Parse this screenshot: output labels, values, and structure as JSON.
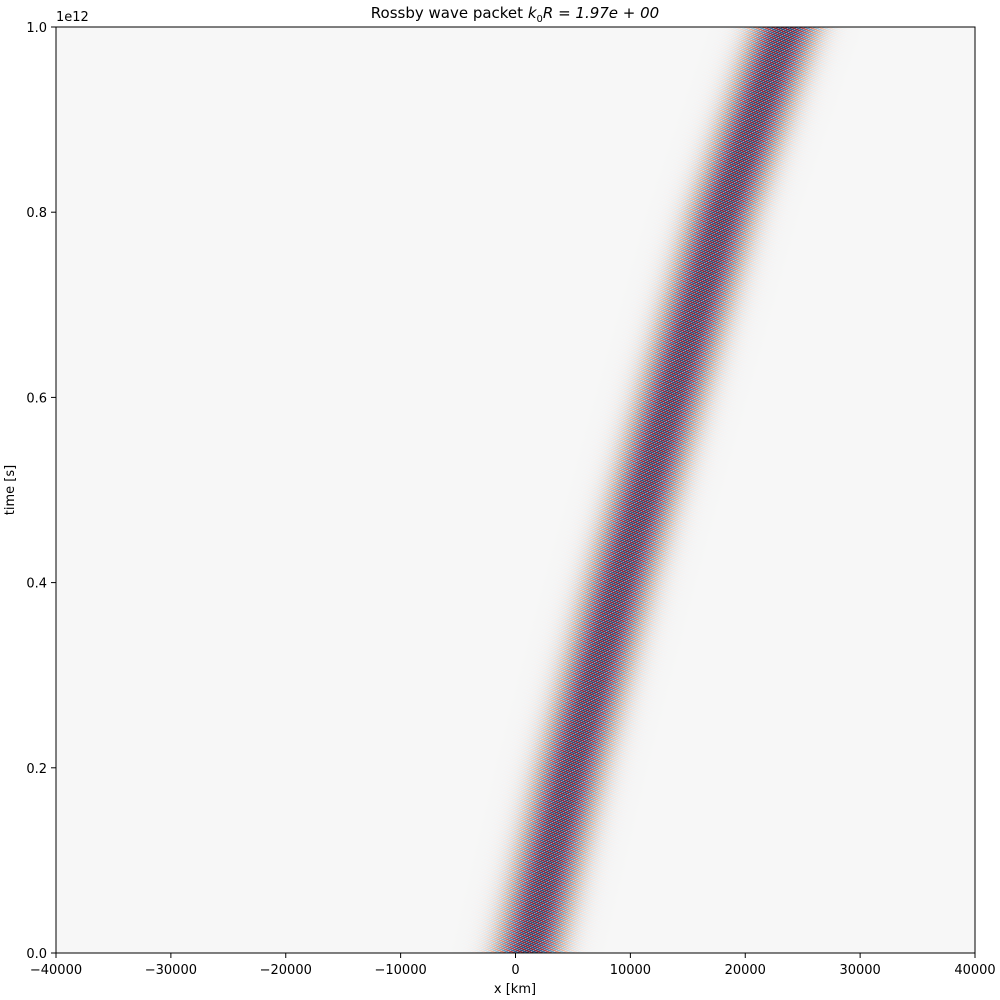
{
  "chart_data": {
    "type": "heatmap",
    "title_prefix": "Rossby wave packet ",
    "title_math": "k",
    "title_math_sub": "0",
    "title_math_rest": "R = 1.97e + 00",
    "xlabel": "x [km]",
    "ylabel": "time [s]",
    "y_offset_label": "1e12",
    "xlim": [
      -40000,
      40000
    ],
    "ylim": [
      0,
      1.0
    ],
    "y_scale_factor": 1000000000000.0,
    "xticks": [
      -40000,
      -30000,
      -20000,
      -10000,
      0,
      10000,
      20000,
      30000,
      40000
    ],
    "xtick_labels": [
      "−40000",
      "−30000",
      "−20000",
      "−10000",
      "0",
      "10000",
      "20000",
      "30000",
      "40000"
    ],
    "yticks": [
      0.0,
      0.2,
      0.4,
      0.6,
      0.8,
      1.0
    ],
    "ytick_labels": [
      "0.0",
      "0.2",
      "0.4",
      "0.6",
      "0.8",
      "1.0"
    ],
    "colormap": "RdBu_r",
    "packet": {
      "center_x_at_t": [
        {
          "t": 0.0,
          "x": 1000
        },
        {
          "t": 0.2,
          "x": 4800
        },
        {
          "t": 0.4,
          "x": 9000
        },
        {
          "t": 0.6,
          "x": 13500
        },
        {
          "t": 0.8,
          "x": 18000
        },
        {
          "t": 1.0,
          "x": 23500
        }
      ],
      "envelope_halfwidth_km": 1800,
      "wavelength_km": 800
    }
  }
}
